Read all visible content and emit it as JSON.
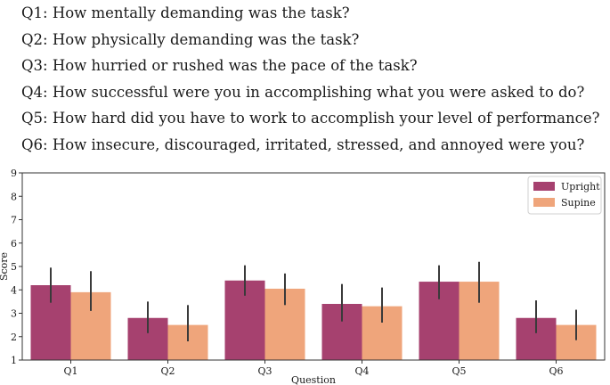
{
  "questions": [
    "Q1: How mentally demanding was the task?",
    "Q2: How physically demanding was the task?",
    "Q3: How hurried or rushed was the pace of the task?",
    "Q4: How successful were you in accomplishing what you were asked to do?",
    "Q5: How hard did you have to work to accomplish your level of performance?",
    "Q6: How insecure, discouraged, irritated, stressed, and annoyed were you?"
  ],
  "colors": {
    "upright": "#a6416f",
    "supine": "#efa57b",
    "error_bar": "#3a3a3a",
    "axis": "#333333"
  },
  "chart_data": {
    "type": "bar",
    "title": "",
    "xlabel": "Question",
    "ylabel": "Score",
    "categories": [
      "Q1",
      "Q2",
      "Q3",
      "Q4",
      "Q5",
      "Q6"
    ],
    "ylim": [
      1,
      9
    ],
    "yticks": [
      "1",
      "2",
      "3",
      "4",
      "5",
      "6",
      "7",
      "8",
      "9"
    ],
    "legend_position": "top-right",
    "series": [
      {
        "name": "Upright",
        "values": [
          4.2,
          2.8,
          4.4,
          3.4,
          4.35,
          2.8
        ],
        "err_low": [
          3.45,
          2.15,
          3.75,
          2.65,
          3.6,
          2.15
        ],
        "err_high": [
          4.95,
          3.5,
          5.05,
          4.25,
          5.05,
          3.55
        ]
      },
      {
        "name": "Supine",
        "values": [
          3.9,
          2.5,
          4.05,
          3.3,
          4.35,
          2.5
        ],
        "err_low": [
          3.1,
          1.8,
          3.35,
          2.6,
          3.45,
          1.85
        ],
        "err_high": [
          4.8,
          3.35,
          4.7,
          4.1,
          5.2,
          3.15
        ]
      }
    ]
  }
}
